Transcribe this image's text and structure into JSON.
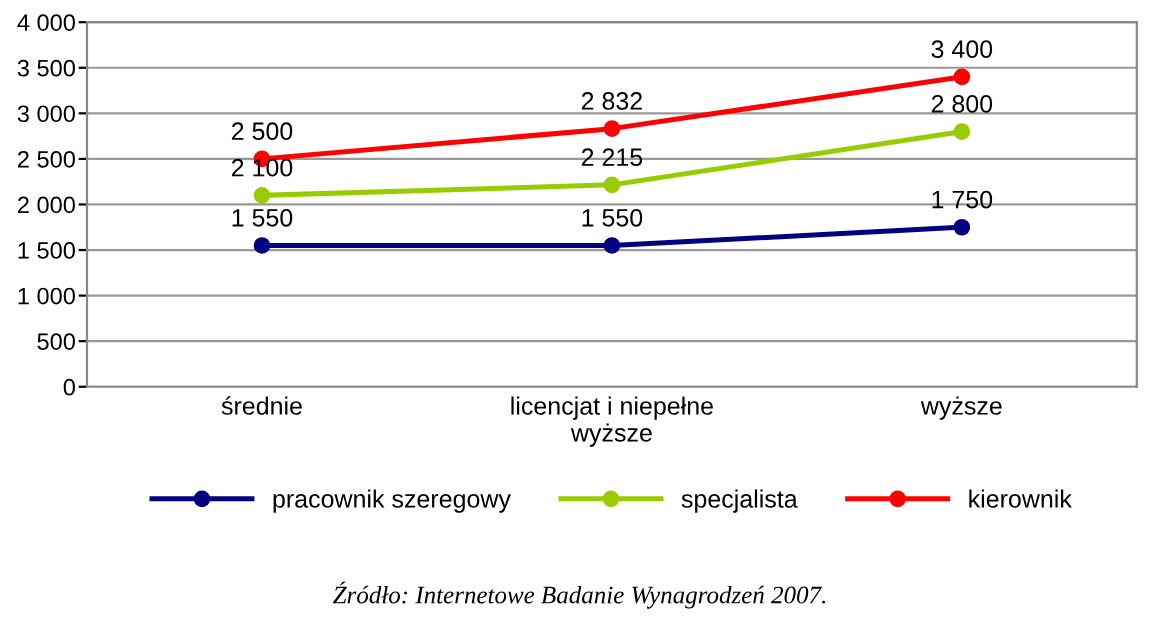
{
  "chart_data": {
    "type": "line",
    "categories": [
      "średnie",
      "licencjat i niepełne\nwyższe",
      "wyższe"
    ],
    "series": [
      {
        "name": "pracownik szeregowy",
        "color": "#000080",
        "values": [
          1550,
          1550,
          1750
        ],
        "value_labels": [
          "1 550",
          "1 550",
          "1 750"
        ]
      },
      {
        "name": "specjalista",
        "color": "#99cc00",
        "values": [
          2100,
          2215,
          2800
        ],
        "value_labels": [
          "2 100",
          "2 215",
          "2 800"
        ]
      },
      {
        "name": "kierownik",
        "color": "#ff0000",
        "values": [
          2500,
          2832,
          3400
        ],
        "value_labels": [
          "2 500",
          "2 832",
          "3 400"
        ]
      }
    ],
    "ylim": [
      0,
      4000
    ],
    "yticks": [
      0,
      500,
      {
        "value": 1000,
        "label": "1 000"
      },
      {
        "value": 1500,
        "label": "1 500"
      },
      {
        "value": 2000,
        "label": "2 000"
      },
      {
        "value": 2500,
        "label": "2 500"
      },
      {
        "value": 3000,
        "label": "3 000"
      },
      {
        "value": 3500,
        "label": "3 500"
      },
      {
        "value": 4000,
        "label": "4 000"
      }
    ],
    "grid": "y",
    "legend": "bottom",
    "marker": "circle",
    "line_style": "solid",
    "annotations": [
      "Źródło: Internetowe Badanie Wynagrodzeń 2007."
    ]
  }
}
